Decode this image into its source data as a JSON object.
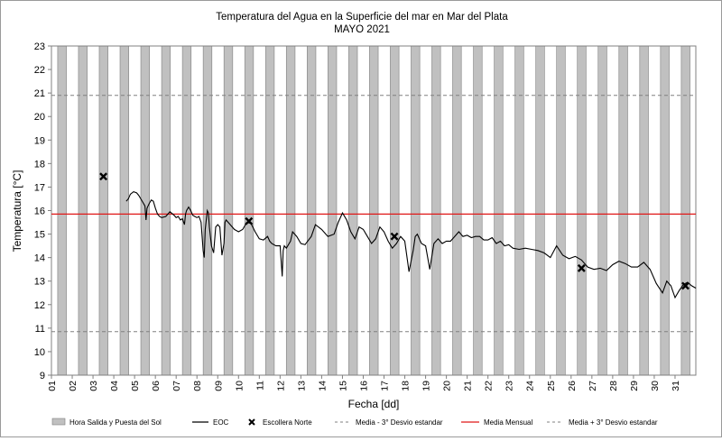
{
  "chart_data": {
    "type": "line",
    "title": "Temperatura del Agua en la Superficie del mar en Mar del Plata",
    "subtitle": "MAYO 2021",
    "xlabel": "Fecha [dd]",
    "ylabel": "Temperatura [°C]",
    "xlim": [
      1,
      32
    ],
    "ylim": [
      9,
      23
    ],
    "yticks": [
      9,
      10,
      11,
      12,
      13,
      14,
      15,
      16,
      17,
      18,
      19,
      20,
      21,
      22,
      23
    ],
    "xticks": [
      "01",
      "02",
      "03",
      "04",
      "05",
      "06",
      "07",
      "08",
      "09",
      "10",
      "11",
      "12",
      "13",
      "14",
      "15",
      "16",
      "17",
      "18",
      "19",
      "20",
      "21",
      "22",
      "23",
      "24",
      "25",
      "26",
      "27",
      "28",
      "29",
      "30",
      "31"
    ],
    "legend_position": "bottom",
    "legend": [
      {
        "label": "Hora Salida y Puesta del Sol",
        "kind": "box"
      },
      {
        "label": "EOC",
        "kind": "line"
      },
      {
        "label": "Escollera Norte",
        "kind": "x"
      },
      {
        "label": "Media - 3° Desvio estandar",
        "kind": "dash"
      },
      {
        "label": "Media Mensual",
        "kind": "red"
      },
      {
        "label": "Media + 3° Desvio estandar",
        "kind": "dash"
      }
    ],
    "daylight_bands": {
      "start_offset": 0.3,
      "end_offset": 0.72
    },
    "reference_lines": {
      "media_mensual": 15.85,
      "media_menos_3_desvio": 10.85,
      "media_mas_3_desvio": 20.9
    },
    "series": [
      {
        "name": "EOC",
        "x": [
          4.6,
          4.7,
          4.8,
          4.95,
          5.1,
          5.2,
          5.3,
          5.4,
          5.5,
          5.55,
          5.6,
          5.7,
          5.8,
          5.9,
          6.0,
          6.1,
          6.2,
          6.3,
          6.5,
          6.7,
          6.9,
          7.0,
          7.1,
          7.2,
          7.3,
          7.4,
          7.45,
          7.5,
          7.6,
          7.7,
          7.8,
          7.9,
          8.0,
          8.1,
          8.2,
          8.3,
          8.35,
          8.4,
          8.5,
          8.55,
          8.6,
          8.7,
          8.8,
          8.9,
          9.0,
          9.1,
          9.2,
          9.3,
          9.35,
          9.4,
          9.6,
          9.8,
          10.0,
          10.2,
          10.4,
          10.6,
          10.8,
          11.0,
          11.2,
          11.4,
          11.5,
          11.6,
          11.8,
          12.0,
          12.1,
          12.15,
          12.2,
          12.3,
          12.5,
          12.6,
          12.8,
          13.0,
          13.2,
          13.5,
          13.7,
          14.0,
          14.3,
          14.6,
          14.8,
          15.0,
          15.2,
          15.4,
          15.6,
          15.8,
          16.0,
          16.2,
          16.4,
          16.6,
          16.8,
          17.0,
          17.2,
          17.4,
          17.6,
          17.8,
          18.0,
          18.2,
          18.4,
          18.5,
          18.6,
          18.8,
          19.0,
          19.2,
          19.4,
          19.6,
          19.8,
          20.0,
          20.2,
          20.4,
          20.6,
          20.8,
          21.0,
          21.2,
          21.4,
          21.6,
          21.8,
          22.0,
          22.2,
          22.4,
          22.6,
          22.8,
          23.0,
          23.2,
          23.5,
          23.8,
          24.1,
          24.4,
          24.7,
          25.0,
          25.3,
          25.6,
          25.9,
          26.2,
          26.5,
          26.8,
          27.1,
          27.4,
          27.7,
          28.0,
          28.3,
          28.6,
          28.9,
          29.2,
          29.5,
          29.8,
          30.1,
          30.4,
          30.6,
          30.8,
          31.0,
          31.2,
          31.4,
          31.6,
          31.8,
          32.0
        ],
        "y": [
          16.4,
          16.5,
          16.7,
          16.8,
          16.75,
          16.65,
          16.5,
          16.35,
          16.2,
          15.6,
          16.1,
          16.3,
          16.45,
          16.4,
          16.1,
          15.85,
          15.75,
          15.7,
          15.75,
          15.95,
          15.8,
          15.7,
          15.75,
          15.6,
          15.65,
          15.4,
          15.85,
          16.0,
          16.15,
          16.0,
          15.8,
          15.75,
          15.7,
          15.75,
          15.5,
          14.3,
          14.0,
          15.2,
          16.0,
          15.9,
          15.3,
          14.5,
          14.2,
          15.3,
          15.4,
          15.3,
          14.1,
          14.6,
          15.5,
          15.6,
          15.4,
          15.2,
          15.1,
          15.2,
          15.5,
          15.45,
          15.1,
          14.8,
          14.75,
          14.9,
          14.7,
          14.6,
          14.5,
          14.5,
          13.2,
          14.3,
          14.5,
          14.4,
          14.7,
          15.1,
          14.9,
          14.6,
          14.55,
          14.9,
          15.4,
          15.2,
          14.9,
          15.0,
          15.5,
          15.9,
          15.6,
          15.1,
          14.8,
          15.3,
          15.2,
          14.9,
          14.6,
          14.8,
          15.3,
          15.1,
          14.7,
          14.4,
          14.6,
          14.9,
          14.7,
          13.4,
          14.3,
          14.9,
          15.0,
          14.6,
          14.5,
          13.5,
          14.6,
          14.8,
          14.6,
          14.7,
          14.7,
          14.9,
          15.1,
          14.9,
          14.95,
          14.85,
          14.9,
          14.9,
          14.75,
          14.75,
          14.85,
          14.6,
          14.7,
          14.5,
          14.55,
          14.4,
          14.35,
          14.4,
          14.35,
          14.3,
          14.2,
          14.0,
          14.5,
          14.1,
          13.95,
          14.05,
          13.9,
          13.6,
          13.5,
          13.55,
          13.45,
          13.7,
          13.85,
          13.75,
          13.6,
          13.6,
          13.8,
          13.5,
          12.9,
          12.5,
          13.0,
          12.8,
          12.3,
          12.6,
          12.85,
          12.95,
          12.8,
          12.7
        ]
      },
      {
        "name": "Escollera Norte",
        "x": [
          3.5,
          10.5,
          17.5,
          26.5,
          31.5
        ],
        "y": [
          17.45,
          15.55,
          14.9,
          13.55,
          12.8
        ]
      }
    ]
  }
}
